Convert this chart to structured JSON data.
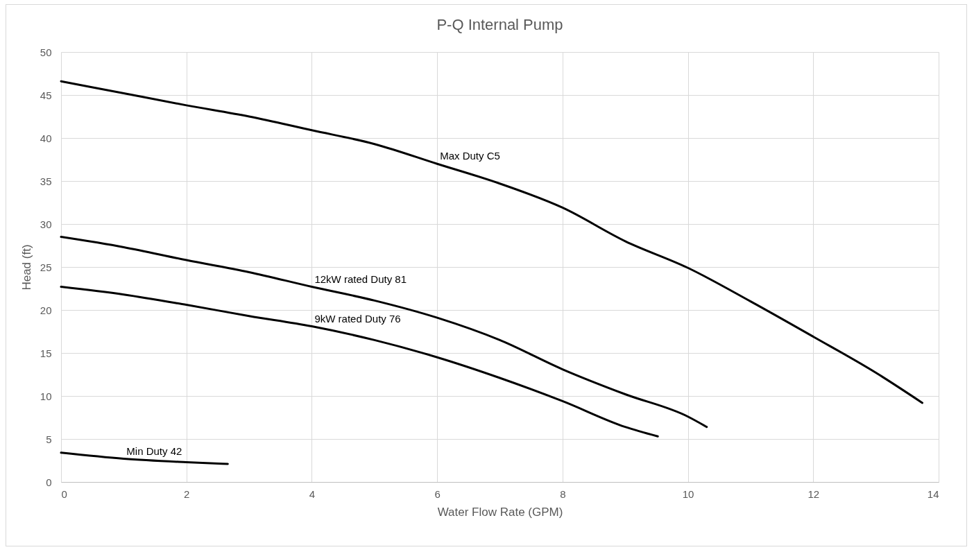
{
  "chart_data": {
    "type": "line",
    "title": "P-Q Internal Pump",
    "xlabel": "Water Flow Rate (GPM)",
    "ylabel": "Head (ft)",
    "xlim": [
      0,
      14
    ],
    "ylim": [
      0,
      50
    ],
    "xticks": [
      0,
      2,
      4,
      6,
      8,
      10,
      12,
      14
    ],
    "yticks": [
      0,
      5,
      10,
      15,
      20,
      25,
      30,
      35,
      40,
      45,
      50
    ],
    "grid": true,
    "series": [
      {
        "name": "Max Duty C5",
        "color": "#000000",
        "x": [
          0,
          1,
          2,
          3,
          4,
          5,
          6,
          7,
          8,
          9,
          10,
          11,
          12,
          13,
          13.74
        ],
        "values": [
          46.6,
          45.2,
          43.8,
          42.5,
          40.9,
          39.3,
          37.0,
          34.7,
          31.9,
          28.0,
          24.9,
          21.0,
          16.9,
          12.7,
          9.2
        ]
      },
      {
        "name": "12kW rated Duty 81",
        "color": "#000000",
        "x": [
          0,
          1,
          2,
          3,
          4,
          5,
          6,
          7,
          8,
          9,
          10,
          10.3
        ],
        "values": [
          28.5,
          27.3,
          25.8,
          24.4,
          22.7,
          21.1,
          19.1,
          16.5,
          13.1,
          10.2,
          7.6,
          6.4
        ]
      },
      {
        "name": "9kW rated Duty 76",
        "color": "#000000",
        "x": [
          0,
          1,
          2,
          3,
          4,
          5,
          6,
          7,
          8,
          9,
          9.52
        ],
        "values": [
          22.7,
          21.8,
          20.6,
          19.3,
          18.1,
          16.5,
          14.5,
          12.1,
          9.4,
          6.4,
          5.3
        ]
      },
      {
        "name": "Min Duty 42",
        "color": "#000000",
        "x": [
          0,
          1,
          2,
          2.66
        ],
        "values": [
          3.4,
          2.7,
          2.3,
          2.1
        ]
      }
    ]
  }
}
